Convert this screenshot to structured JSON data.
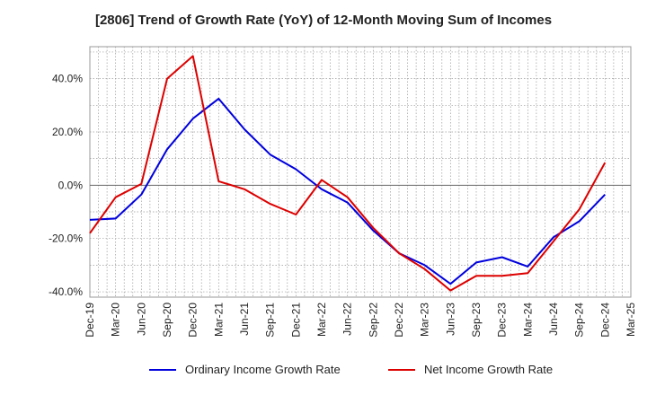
{
  "chart_data": {
    "type": "line",
    "title": "[2806]  Trend of Growth Rate (YoY) of 12-Month Moving Sum of Incomes",
    "xlabel": "",
    "ylabel": "",
    "ylim": [
      -42,
      52
    ],
    "y_ticks": [
      40,
      20,
      0,
      -20,
      -40
    ],
    "y_tick_labels": [
      "40.0%",
      "20.0%",
      "0.0%",
      "-20.0%",
      "-40.0%"
    ],
    "x_tick_labels": [
      "Dec-19",
      "Mar-20",
      "Jun-20",
      "Sep-20",
      "Dec-20",
      "Mar-21",
      "Jun-21",
      "Sep-21",
      "Dec-21",
      "Mar-22",
      "Jun-22",
      "Sep-22",
      "Dec-22",
      "Mar-23",
      "Jun-23",
      "Sep-23",
      "Dec-23",
      "Mar-24",
      "Jun-24",
      "Sep-24",
      "Dec-24",
      "Mar-25"
    ],
    "months": [
      "Dec-19",
      "Jan-20",
      "Feb-20",
      "Mar-20",
      "Apr-20",
      "May-20",
      "Jun-20",
      "Jul-20",
      "Aug-20",
      "Sep-20",
      "Oct-20",
      "Nov-20",
      "Dec-20",
      "Jan-21",
      "Feb-21",
      "Mar-21",
      "Apr-21",
      "May-21",
      "Jun-21",
      "Jul-21",
      "Aug-21",
      "Sep-21",
      "Oct-21",
      "Nov-21",
      "Dec-21",
      "Jan-22",
      "Feb-22",
      "Mar-22",
      "Apr-22",
      "May-22",
      "Jun-22",
      "Jul-22",
      "Aug-22",
      "Sep-22",
      "Oct-22",
      "Nov-22",
      "Dec-22",
      "Jan-23",
      "Feb-23",
      "Mar-23",
      "Apr-23",
      "May-23",
      "Jun-23",
      "Jul-23",
      "Aug-23",
      "Sep-23",
      "Oct-23",
      "Nov-23",
      "Dec-23",
      "Jan-24",
      "Feb-24",
      "Mar-24",
      "Apr-24",
      "May-24",
      "Jun-24",
      "Jul-24",
      "Aug-24",
      "Sep-24",
      "Oct-24",
      "Nov-24",
      "Dec-24",
      "Jan-25",
      "Feb-25",
      "Mar-25"
    ],
    "grid": true,
    "legend_position": "bottom",
    "series": [
      {
        "name": "Ordinary Income Growth Rate",
        "color": "#0000dd",
        "points": [
          [
            "Dec-19",
            -13.0
          ],
          [
            "Mar-20",
            -12.5
          ],
          [
            "Jun-20",
            -3.5
          ],
          [
            "Sep-20",
            13.5
          ],
          [
            "Dec-20",
            25.0
          ],
          [
            "Mar-21",
            32.5
          ],
          [
            "Jun-21",
            21.0
          ],
          [
            "Sep-21",
            11.5
          ],
          [
            "Dec-21",
            6.0
          ],
          [
            "Mar-22",
            -1.5
          ],
          [
            "Jun-22",
            -6.5
          ],
          [
            "Sep-22",
            -17.0
          ],
          [
            "Dec-22",
            -25.5
          ],
          [
            "Mar-23",
            -30.0
          ],
          [
            "Jun-23",
            -37.0
          ],
          [
            "Sep-23",
            -29.0
          ],
          [
            "Dec-23",
            -27.0
          ],
          [
            "Mar-24",
            -30.5
          ],
          [
            "Jun-24",
            -19.5
          ],
          [
            "Sep-24",
            -13.5
          ],
          [
            "Dec-24",
            -3.5
          ]
        ]
      },
      {
        "name": "Net Income Growth Rate",
        "color": "#dd0000",
        "points": [
          [
            "Dec-19",
            -18.0
          ],
          [
            "Mar-20",
            -4.5
          ],
          [
            "Jun-20",
            0.5
          ],
          [
            "Sep-20",
            40.0
          ],
          [
            "Dec-20",
            48.5
          ],
          [
            "Mar-21",
            1.5
          ],
          [
            "Jun-21",
            -1.5
          ],
          [
            "Sep-21",
            -7.0
          ],
          [
            "Dec-21",
            -11.0
          ],
          [
            "Mar-22",
            2.0
          ],
          [
            "Jun-22",
            -4.5
          ],
          [
            "Sep-22",
            -16.0
          ],
          [
            "Dec-22",
            -25.5
          ],
          [
            "Mar-23",
            -31.5
          ],
          [
            "Jun-23",
            -39.5
          ],
          [
            "Sep-23",
            -34.0
          ],
          [
            "Dec-23",
            -34.0
          ],
          [
            "Mar-24",
            -33.0
          ],
          [
            "Jun-24",
            -21.0
          ],
          [
            "Sep-24",
            -9.0
          ],
          [
            "Dec-24",
            8.5
          ]
        ]
      }
    ]
  }
}
